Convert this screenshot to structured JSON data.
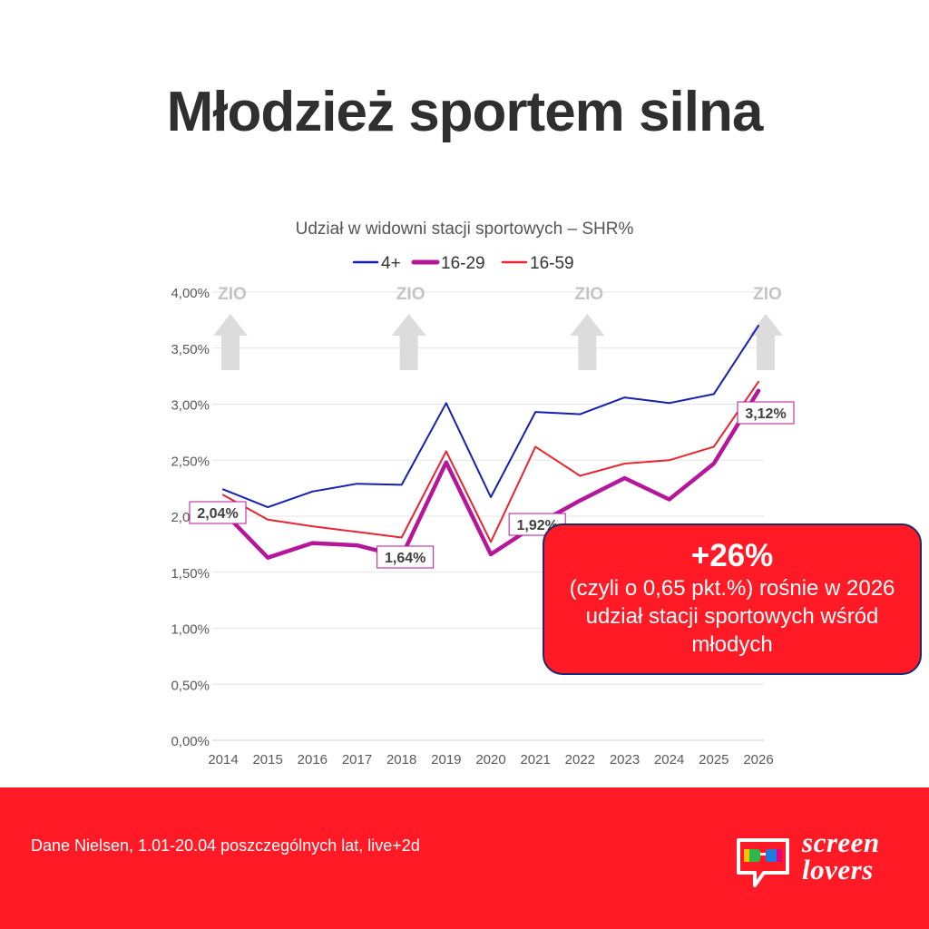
{
  "title": "Młodzież sportem silna",
  "chart_data": {
    "type": "line",
    "title": "Udział w widowni stacji sportowych – SHR%",
    "xlabel": "",
    "ylabel": "",
    "categories": [
      "2014",
      "2015",
      "2016",
      "2017",
      "2018",
      "2019",
      "2020",
      "2021",
      "2022",
      "2023",
      "2024",
      "2025",
      "2026"
    ],
    "ylim": [
      0,
      4.0
    ],
    "yticks": [
      0,
      0.5,
      1.0,
      1.5,
      2.0,
      2.5,
      3.0,
      3.5,
      4.0
    ],
    "ytick_labels": [
      "0,00%",
      "0,50%",
      "1,00%",
      "1,50%",
      "2,00%",
      "2,50%",
      "3,00%",
      "3,50%",
      "4,00%"
    ],
    "grid": true,
    "legend_position": "top",
    "series": [
      {
        "name": "4+",
        "color": "#1520b0",
        "width": "thin",
        "values": [
          2.24,
          2.08,
          2.22,
          2.29,
          2.28,
          3.01,
          2.17,
          2.93,
          2.91,
          3.06,
          3.01,
          3.09,
          3.7
        ]
      },
      {
        "name": "16-29",
        "color": "#b5169a",
        "width": "thick",
        "values": [
          2.04,
          1.63,
          1.76,
          1.74,
          1.64,
          2.48,
          1.66,
          1.92,
          2.14,
          2.34,
          2.15,
          2.47,
          3.12
        ]
      },
      {
        "name": "16-59",
        "color": "#e82530",
        "width": "thin",
        "values": [
          2.19,
          1.97,
          1.91,
          1.86,
          1.81,
          2.58,
          1.77,
          2.62,
          2.36,
          2.47,
          2.5,
          2.62,
          3.2
        ]
      }
    ],
    "data_labels": [
      {
        "category": "2014",
        "text": "2,04%"
      },
      {
        "category": "2018",
        "text": "1,64%"
      },
      {
        "category": "2021",
        "text": "1,92%"
      },
      {
        "category": "2026",
        "text": "3,12%"
      }
    ],
    "annotations": [
      {
        "category": "2014",
        "text": "ZIO",
        "icon": "up-arrow-icon"
      },
      {
        "category": "2018",
        "text": "ZIO",
        "icon": "up-arrow-icon"
      },
      {
        "category": "2022",
        "text": "ZIO",
        "icon": "up-arrow-icon"
      },
      {
        "category": "2026",
        "text": "ZIO",
        "icon": "up-arrow-icon"
      }
    ]
  },
  "callout": {
    "headline": "+26%",
    "text": "(czyli o 0,65 pkt.%) rośnie w 2026 udział stacji sportowych wśród młodych"
  },
  "footer": {
    "source": "Dane Nielsen, 1.01-20.04 poszczególnych lat, live+2d",
    "logo_text": "screen lovers",
    "logo_icon": "glasses-speech-bubble-icon"
  },
  "colors": {
    "accent": "#ff1a25",
    "callout_border": "#1b2a6b",
    "title": "#2f2f2f"
  }
}
